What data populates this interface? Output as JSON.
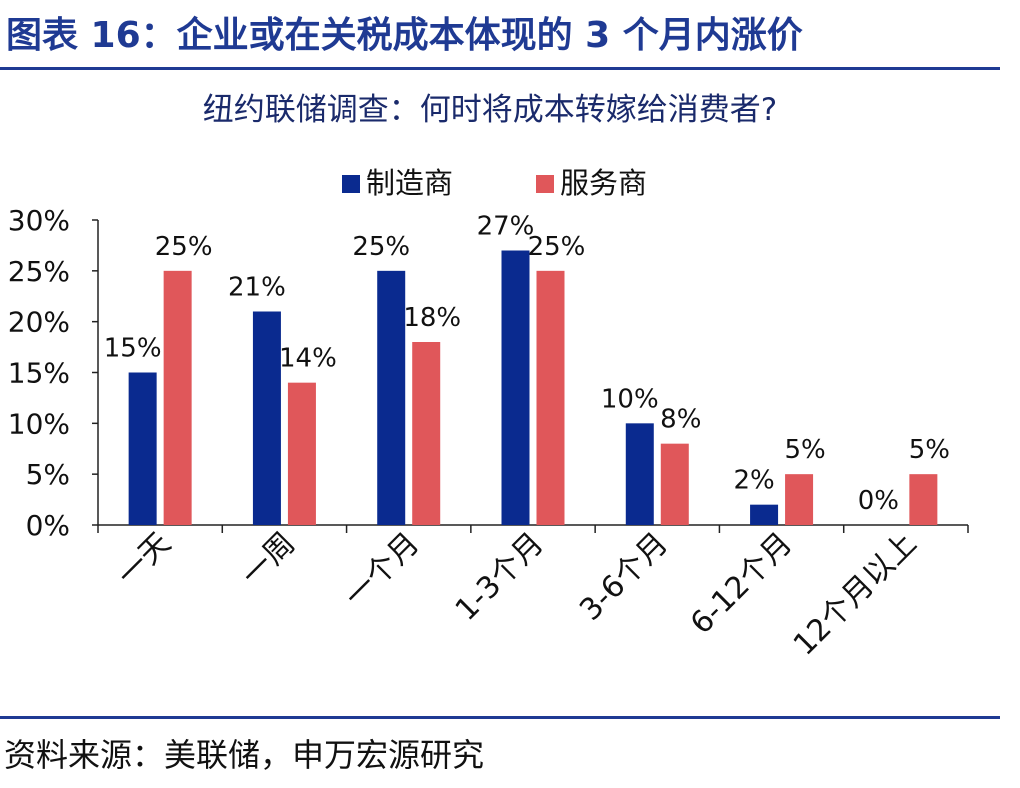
{
  "figure": {
    "title": "图表 16：企业或在关税成本体现的 3 个月内涨价",
    "source": "资料来源：美联储，申万宏源研究"
  },
  "chart_data": {
    "type": "bar",
    "title": "纽约联储调查：何时将成本转嫁给消费者?",
    "categories": [
      "一天",
      "一周",
      "一个月",
      "1-3个月",
      "3-6个月",
      "6-12个月",
      "12个月以上"
    ],
    "series": [
      {
        "name": "制造商",
        "color": "#0a2a8f",
        "values": [
          15,
          21,
          25,
          27,
          10,
          2,
          0
        ],
        "labels": [
          "15%",
          "21%",
          "25%",
          "27%",
          "10%",
          "2%",
          "0%"
        ]
      },
      {
        "name": "服务商",
        "color": "#e0575a",
        "values": [
          25,
          14,
          18,
          25,
          8,
          5,
          5
        ],
        "labels": [
          "25%",
          "14%",
          "18%",
          "25%",
          "8%",
          "5%",
          "5%"
        ]
      }
    ],
    "ylim": [
      0,
      30
    ],
    "yticks": [
      "0%",
      "5%",
      "10%",
      "15%",
      "20%",
      "25%",
      "30%"
    ],
    "legend_position": "top"
  }
}
